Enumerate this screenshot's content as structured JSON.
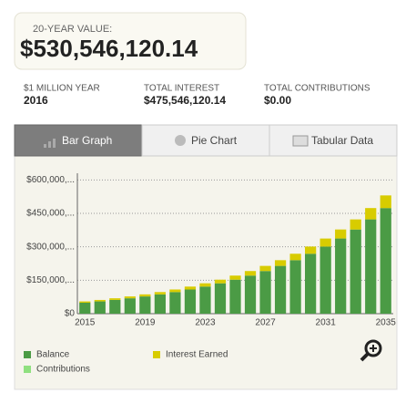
{
  "summary": {
    "label": "20-YEAR VALUE:",
    "value": "$530,546,120.14"
  },
  "stats": [
    {
      "label": "$1 MILLION YEAR",
      "value": "2016"
    },
    {
      "label": "TOTAL INTEREST",
      "value": "$475,546,120.14"
    },
    {
      "label": "TOTAL CONTRIBUTIONS",
      "value": "$0.00"
    }
  ],
  "tabs": [
    "Bar Graph",
    "Pie Chart",
    "Tabular Data"
  ],
  "chart_data": {
    "type": "stacked_bar",
    "categories": [
      "2015",
      null,
      null,
      null,
      "2019",
      null,
      null,
      null,
      "2023",
      null,
      null,
      null,
      "2027",
      null,
      null,
      null,
      "2031",
      null,
      null,
      null,
      "2035"
    ],
    "series": [
      {
        "name": "Balance",
        "color": "#4b9b45",
        "values": [
          49100000,
          55000000,
          61600000,
          69000000,
          77300000,
          86500000,
          96900000,
          108500000,
          121600000,
          136200000,
          152500000,
          170800000,
          191300000,
          214300000,
          240000000,
          268800000,
          301000000,
          337200000,
          377600000,
          423000000,
          473700000
        ]
      },
      {
        "name": "Contributions",
        "color": "#8fe07f",
        "values": [
          0,
          0,
          0,
          0,
          0,
          0,
          0,
          0,
          0,
          0,
          0,
          0,
          0,
          0,
          0,
          0,
          0,
          0,
          0,
          0,
          0
        ]
      },
      {
        "name": "Interest Earned",
        "color": "#d8cc00",
        "values": [
          5900000,
          6600000,
          7400000,
          8300000,
          9300000,
          10400000,
          11600000,
          13000000,
          14600000,
          16300000,
          18300000,
          20500000,
          23000000,
          25700000,
          28800000,
          32300000,
          36100000,
          40500000,
          45300000,
          50800000,
          56800000
        ]
      }
    ],
    "ylim": [
      0,
      630000000
    ],
    "yticks": [
      {
        "value": 0,
        "label": "$0"
      },
      {
        "value": 150000000,
        "label": "$150,000,..."
      },
      {
        "value": 300000000,
        "label": "$300,000,..."
      },
      {
        "value": 450000000,
        "label": "$450,000,..."
      },
      {
        "value": 600000000,
        "label": "$600,000,..."
      }
    ],
    "grid": true
  }
}
